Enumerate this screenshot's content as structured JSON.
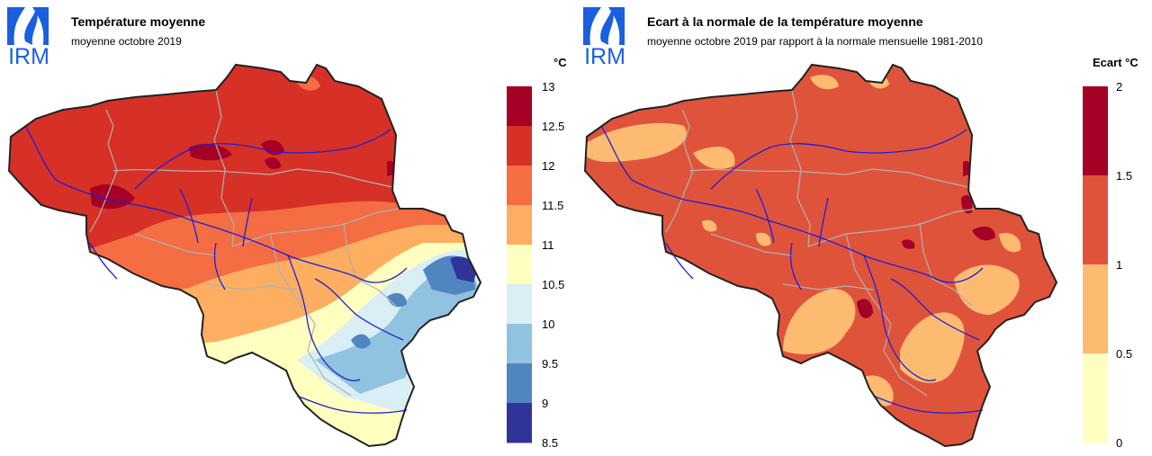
{
  "logo": {
    "text": "IRM",
    "color": "#1a5fe0"
  },
  "left": {
    "title": "Température moyenne",
    "subtitle": "moyenne octobre 2019",
    "unit": "°C",
    "legend": {
      "ticks": [
        "13",
        "12.5",
        "12",
        "11.5",
        "11",
        "10.5",
        "10",
        "9.5",
        "9",
        "8.5"
      ],
      "colors": [
        "#a50026",
        "#d73027",
        "#f46d43",
        "#fdae61",
        "#ffffbf",
        "#d9eef5",
        "#91c3e0",
        "#4f86c0",
        "#30349a"
      ]
    }
  },
  "right": {
    "title": "Ecart à la normale de la température moyenne",
    "subtitle": "moyenne octobre 2019 par rapport à la normale mensuelle 1981-2010",
    "unit": "Ecart °C",
    "legend": {
      "ticks": [
        "2",
        "1.5",
        "1",
        "0.5",
        "0"
      ],
      "colors": [
        "#a50026",
        "#e0533b",
        "#fdbb72",
        "#ffffc0"
      ]
    }
  },
  "map_colors": {
    "border": "#222222",
    "province": "#b0b0b0",
    "river": "#1f1fd6"
  }
}
